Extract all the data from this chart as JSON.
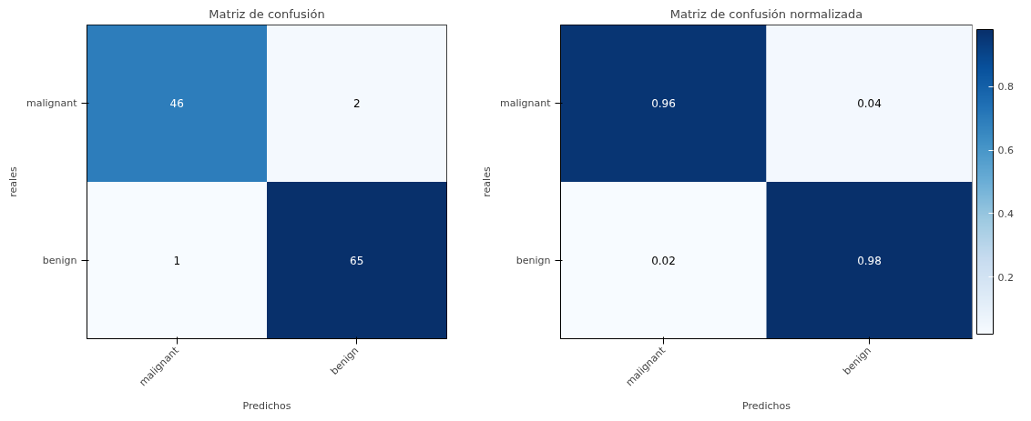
{
  "chart_data": [
    {
      "type": "heatmap",
      "title": "Matriz de confusión",
      "xlabel": "Predichos",
      "ylabel": "reales",
      "categories": [
        "malignant",
        "benign"
      ],
      "y_categories": [
        "malignant",
        "benign"
      ],
      "cells": [
        [
          46,
          2
        ],
        [
          1,
          65
        ]
      ],
      "data_labels": true
    },
    {
      "type": "heatmap",
      "title": "Matriz de confusión normalizada",
      "xlabel": "Predichos",
      "ylabel": "reales",
      "categories": [
        "malignant",
        "benign"
      ],
      "y_categories": [
        "malignant",
        "benign"
      ],
      "cells": [
        [
          0.96,
          0.04
        ],
        [
          0.02,
          0.98
        ]
      ],
      "data_labels": true,
      "clim": [
        0.02,
        0.98
      ],
      "cticks": [
        0.2,
        0.4,
        0.6,
        0.8
      ]
    }
  ]
}
